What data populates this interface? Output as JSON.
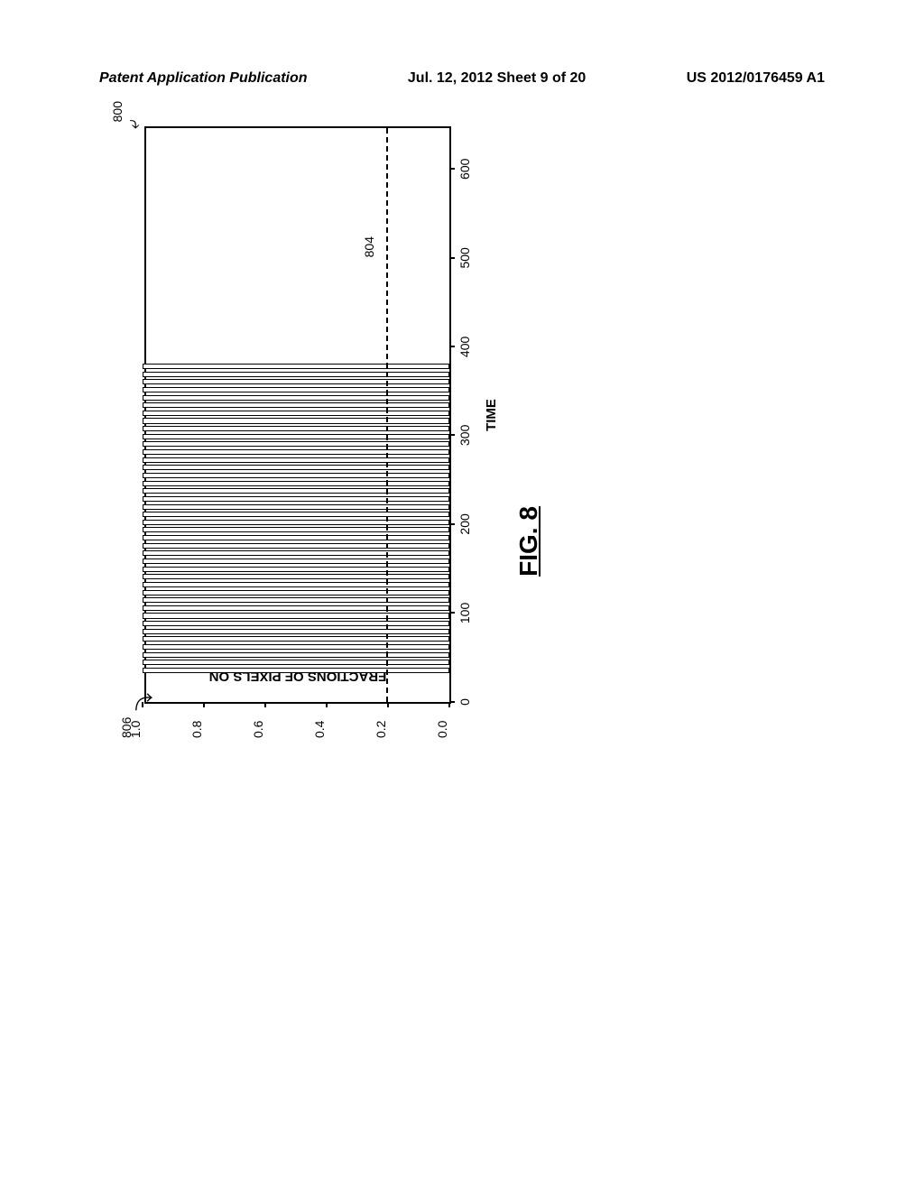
{
  "header": {
    "left": "Patent Application Publication",
    "center": "Jul. 12, 2012  Sheet 9 of 20",
    "right": "US 2012/0176459 A1"
  },
  "chart": {
    "type": "bar",
    "y_label": "FRACTIONS OF PIXELS ON",
    "x_label": "TIME",
    "y_ticks": [
      {
        "value": 0.0,
        "label": "0.0",
        "pos_pct": 0
      },
      {
        "value": 0.2,
        "label": "0.2",
        "pos_pct": 20
      },
      {
        "value": 0.4,
        "label": "0.4",
        "pos_pct": 40
      },
      {
        "value": 0.6,
        "label": "0.6",
        "pos_pct": 60
      },
      {
        "value": 0.8,
        "label": "0.8",
        "pos_pct": 80
      },
      {
        "value": 1.0,
        "label": "1.0",
        "pos_pct": 100
      }
    ],
    "x_ticks": [
      {
        "value": 0,
        "label": "0",
        "pos_pct": 0
      },
      {
        "value": 100,
        "label": "100",
        "pos_pct": 15.4
      },
      {
        "value": 200,
        "label": "200",
        "pos_pct": 30.8
      },
      {
        "value": 300,
        "label": "300",
        "pos_pct": 46.2
      },
      {
        "value": 400,
        "label": "400",
        "pos_pct": 61.5
      },
      {
        "value": 500,
        "label": "500",
        "pos_pct": 76.9
      },
      {
        "value": 600,
        "label": "600",
        "pos_pct": 92.3
      }
    ],
    "xlim": [
      0,
      650
    ],
    "ylim": [
      0,
      1.0
    ],
    "threshold_value": 0.2,
    "threshold_pos_pct": 20,
    "bar_region_start_pct": 5,
    "bar_region_end_pct": 59,
    "bar_count": 40,
    "bar_height_pct": 100,
    "bar_color": "#ffffff",
    "border_color": "#000000",
    "background_color": "#ffffff"
  },
  "references": {
    "ref_800": "800",
    "ref_804": "804",
    "ref_806": "806"
  },
  "caption": "FIG. 8"
}
